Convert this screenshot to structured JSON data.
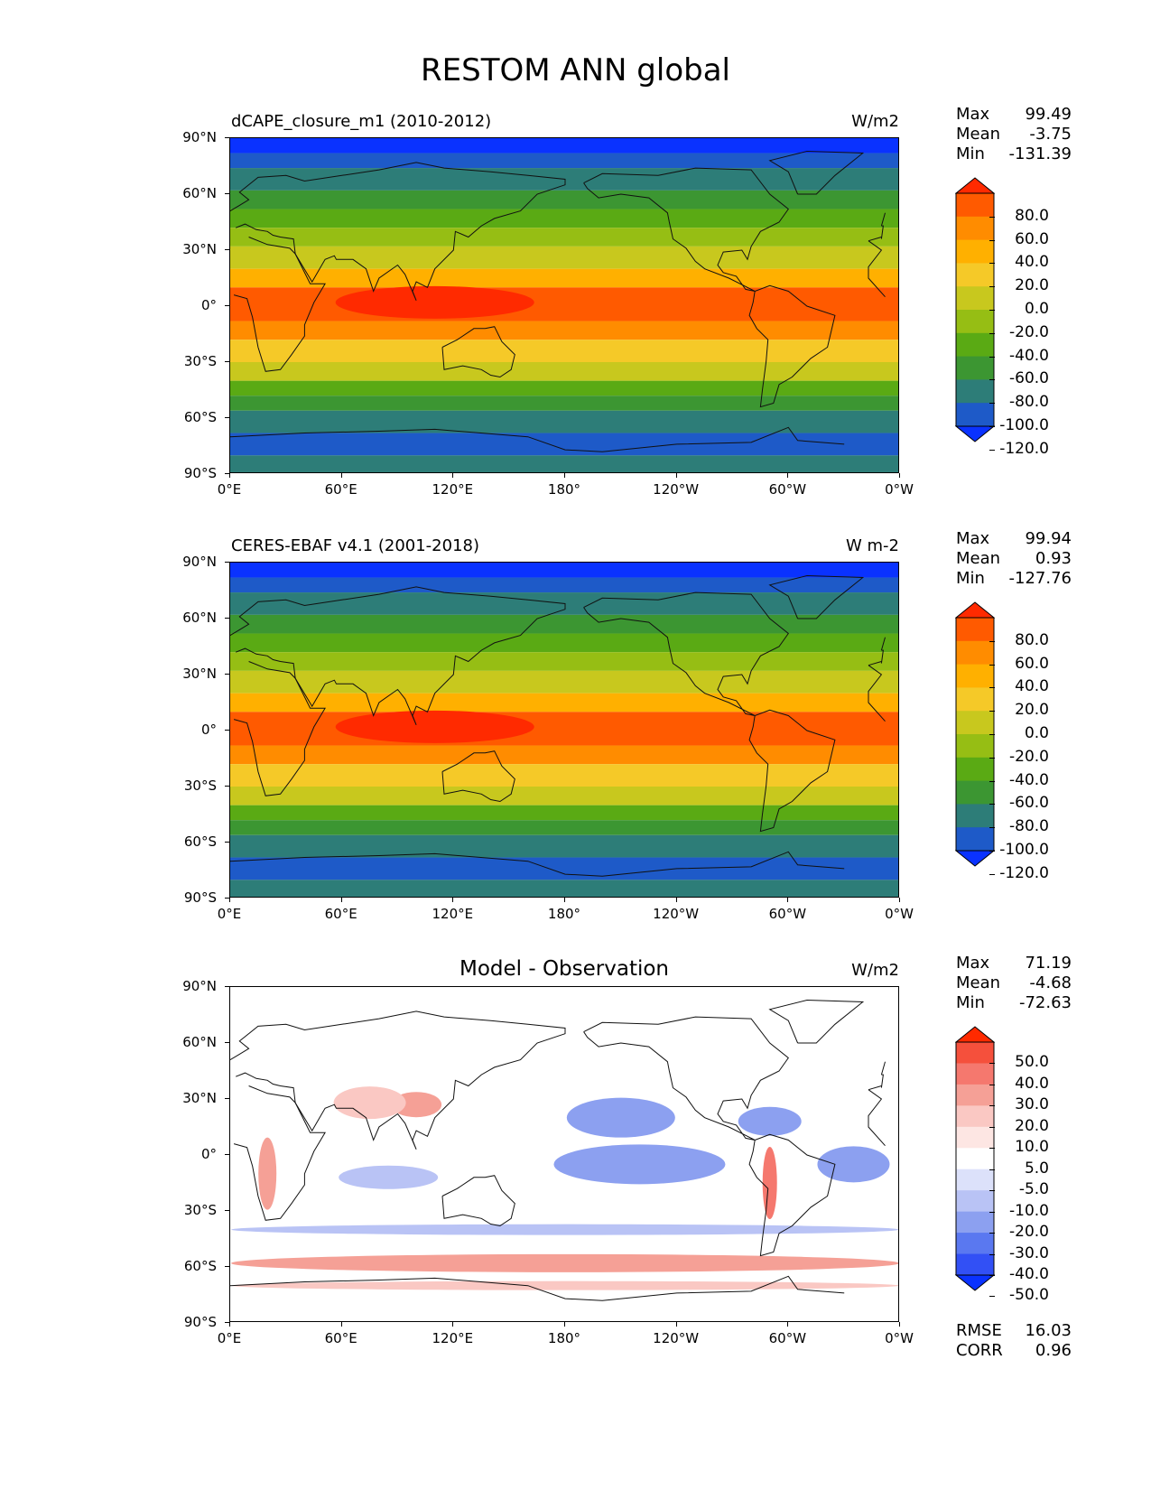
{
  "figure": {
    "title": "RESTOM ANN global",
    "lat_ticks": [
      "90°N",
      "60°N",
      "30°N",
      "0°",
      "30°S",
      "60°S",
      "90°S"
    ],
    "lon_ticks": [
      "0°E",
      "60°E",
      "120°E",
      "180°",
      "120°W",
      "60°W",
      "0°W"
    ]
  },
  "panels": [
    {
      "title": "dCAPE_closure_m1 (2010-2012)",
      "title_style": "left",
      "units": "W/m2",
      "stats": [
        {
          "label": "Max",
          "value": "99.49"
        },
        {
          "label": "Mean",
          "value": "-3.75"
        },
        {
          "label": "Min",
          "value": "-131.39"
        }
      ],
      "colorbar": {
        "labels": [
          "80.0",
          "60.0",
          "40.0",
          "20.0",
          "0.0",
          "-20.0",
          "-40.0",
          "-60.0",
          "-80.0",
          "-100.0",
          "-120.0"
        ],
        "colors": [
          "#ff2a00",
          "#ff5a00",
          "#ff8c00",
          "#ffb000",
          "#f5c928",
          "#c8c81e",
          "#96be14",
          "#5aaa14",
          "#3c9632",
          "#2d7d78",
          "#1e5ac8",
          "#0a32ff"
        ]
      }
    },
    {
      "title": "CERES-EBAF v4.1 (2001-2018)",
      "title_style": "left",
      "units": "W m-2",
      "stats": [
        {
          "label": "Max",
          "value": "99.94"
        },
        {
          "label": "Mean",
          "value": "0.93"
        },
        {
          "label": "Min",
          "value": "-127.76"
        }
      ],
      "colorbar": {
        "labels": [
          "80.0",
          "60.0",
          "40.0",
          "20.0",
          "0.0",
          "-20.0",
          "-40.0",
          "-60.0",
          "-80.0",
          "-100.0",
          "-120.0"
        ],
        "colors": [
          "#ff2a00",
          "#ff5a00",
          "#ff8c00",
          "#ffb000",
          "#f5c928",
          "#c8c81e",
          "#96be14",
          "#5aaa14",
          "#3c9632",
          "#2d7d78",
          "#1e5ac8",
          "#0a32ff"
        ]
      }
    },
    {
      "title": "Model - Observation",
      "title_style": "center",
      "units": "W/m2",
      "stats": [
        {
          "label": "Max",
          "value": "71.19"
        },
        {
          "label": "Mean",
          "value": "-4.68"
        },
        {
          "label": "Min",
          "value": "-72.63"
        }
      ],
      "colorbar": {
        "labels": [
          "50.0",
          "40.0",
          "30.0",
          "20.0",
          "10.0",
          "5.0",
          "-5.0",
          "-10.0",
          "-20.0",
          "-30.0",
          "-40.0",
          "-50.0"
        ],
        "colors": [
          "#ff2a00",
          "#f5503c",
          "#f5786e",
          "#f5a096",
          "#fac8c3",
          "#fde6e3",
          "#ffffff",
          "#dce1fa",
          "#b9c3f5",
          "#8ca0f0",
          "#5a78f0",
          "#3250f5",
          "#0a32ff"
        ]
      },
      "extra_stats": [
        {
          "label": "RMSE",
          "value": "16.03"
        },
        {
          "label": "CORR",
          "value": "0.96"
        }
      ]
    }
  ]
}
